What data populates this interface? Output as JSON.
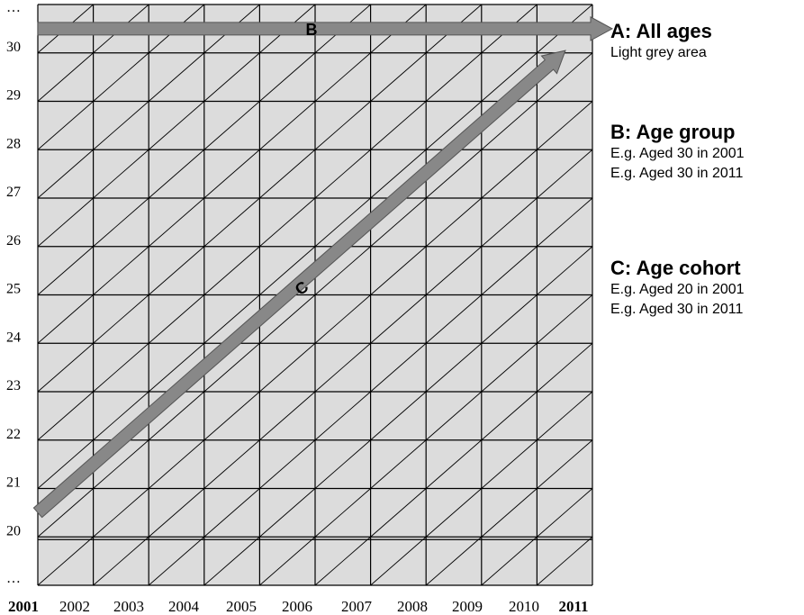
{
  "chart_data": {
    "type": "diagram",
    "y_tick_labels": [
      "…",
      "20",
      "21",
      "22",
      "23",
      "24",
      "25",
      "26",
      "27",
      "28",
      "29",
      "30",
      "…"
    ],
    "x_tick_labels": [
      "2001",
      "2002",
      "2003",
      "2004",
      "2005",
      "2006",
      "2007",
      "2008",
      "2009",
      "2010",
      "2011"
    ],
    "x_bold_labels": [
      "2001",
      "2011"
    ],
    "grid": true,
    "area_color": "#dcdcdc",
    "arrow_color": "#888888",
    "arrows": [
      {
        "label": "B",
        "from": {
          "year": 2001,
          "age": 30.5
        },
        "to": {
          "year": 2011,
          "age": 30.5
        }
      },
      {
        "label": "C",
        "from": {
          "year": 2001,
          "age": 20.5
        },
        "to": {
          "year": 2011,
          "age": 30
        }
      }
    ]
  },
  "legend": {
    "a": {
      "title": "A: All ages",
      "lines": [
        "Light grey area"
      ]
    },
    "b": {
      "title": "B: Age group",
      "lines": [
        "E.g. Aged 30 in 2001",
        "E.g. Aged 30 in 2011"
      ]
    },
    "c": {
      "title": "C: Age cohort",
      "lines": [
        "E.g. Aged 20 in 2001",
        "E.g. Aged 30 in 2011"
      ]
    }
  }
}
